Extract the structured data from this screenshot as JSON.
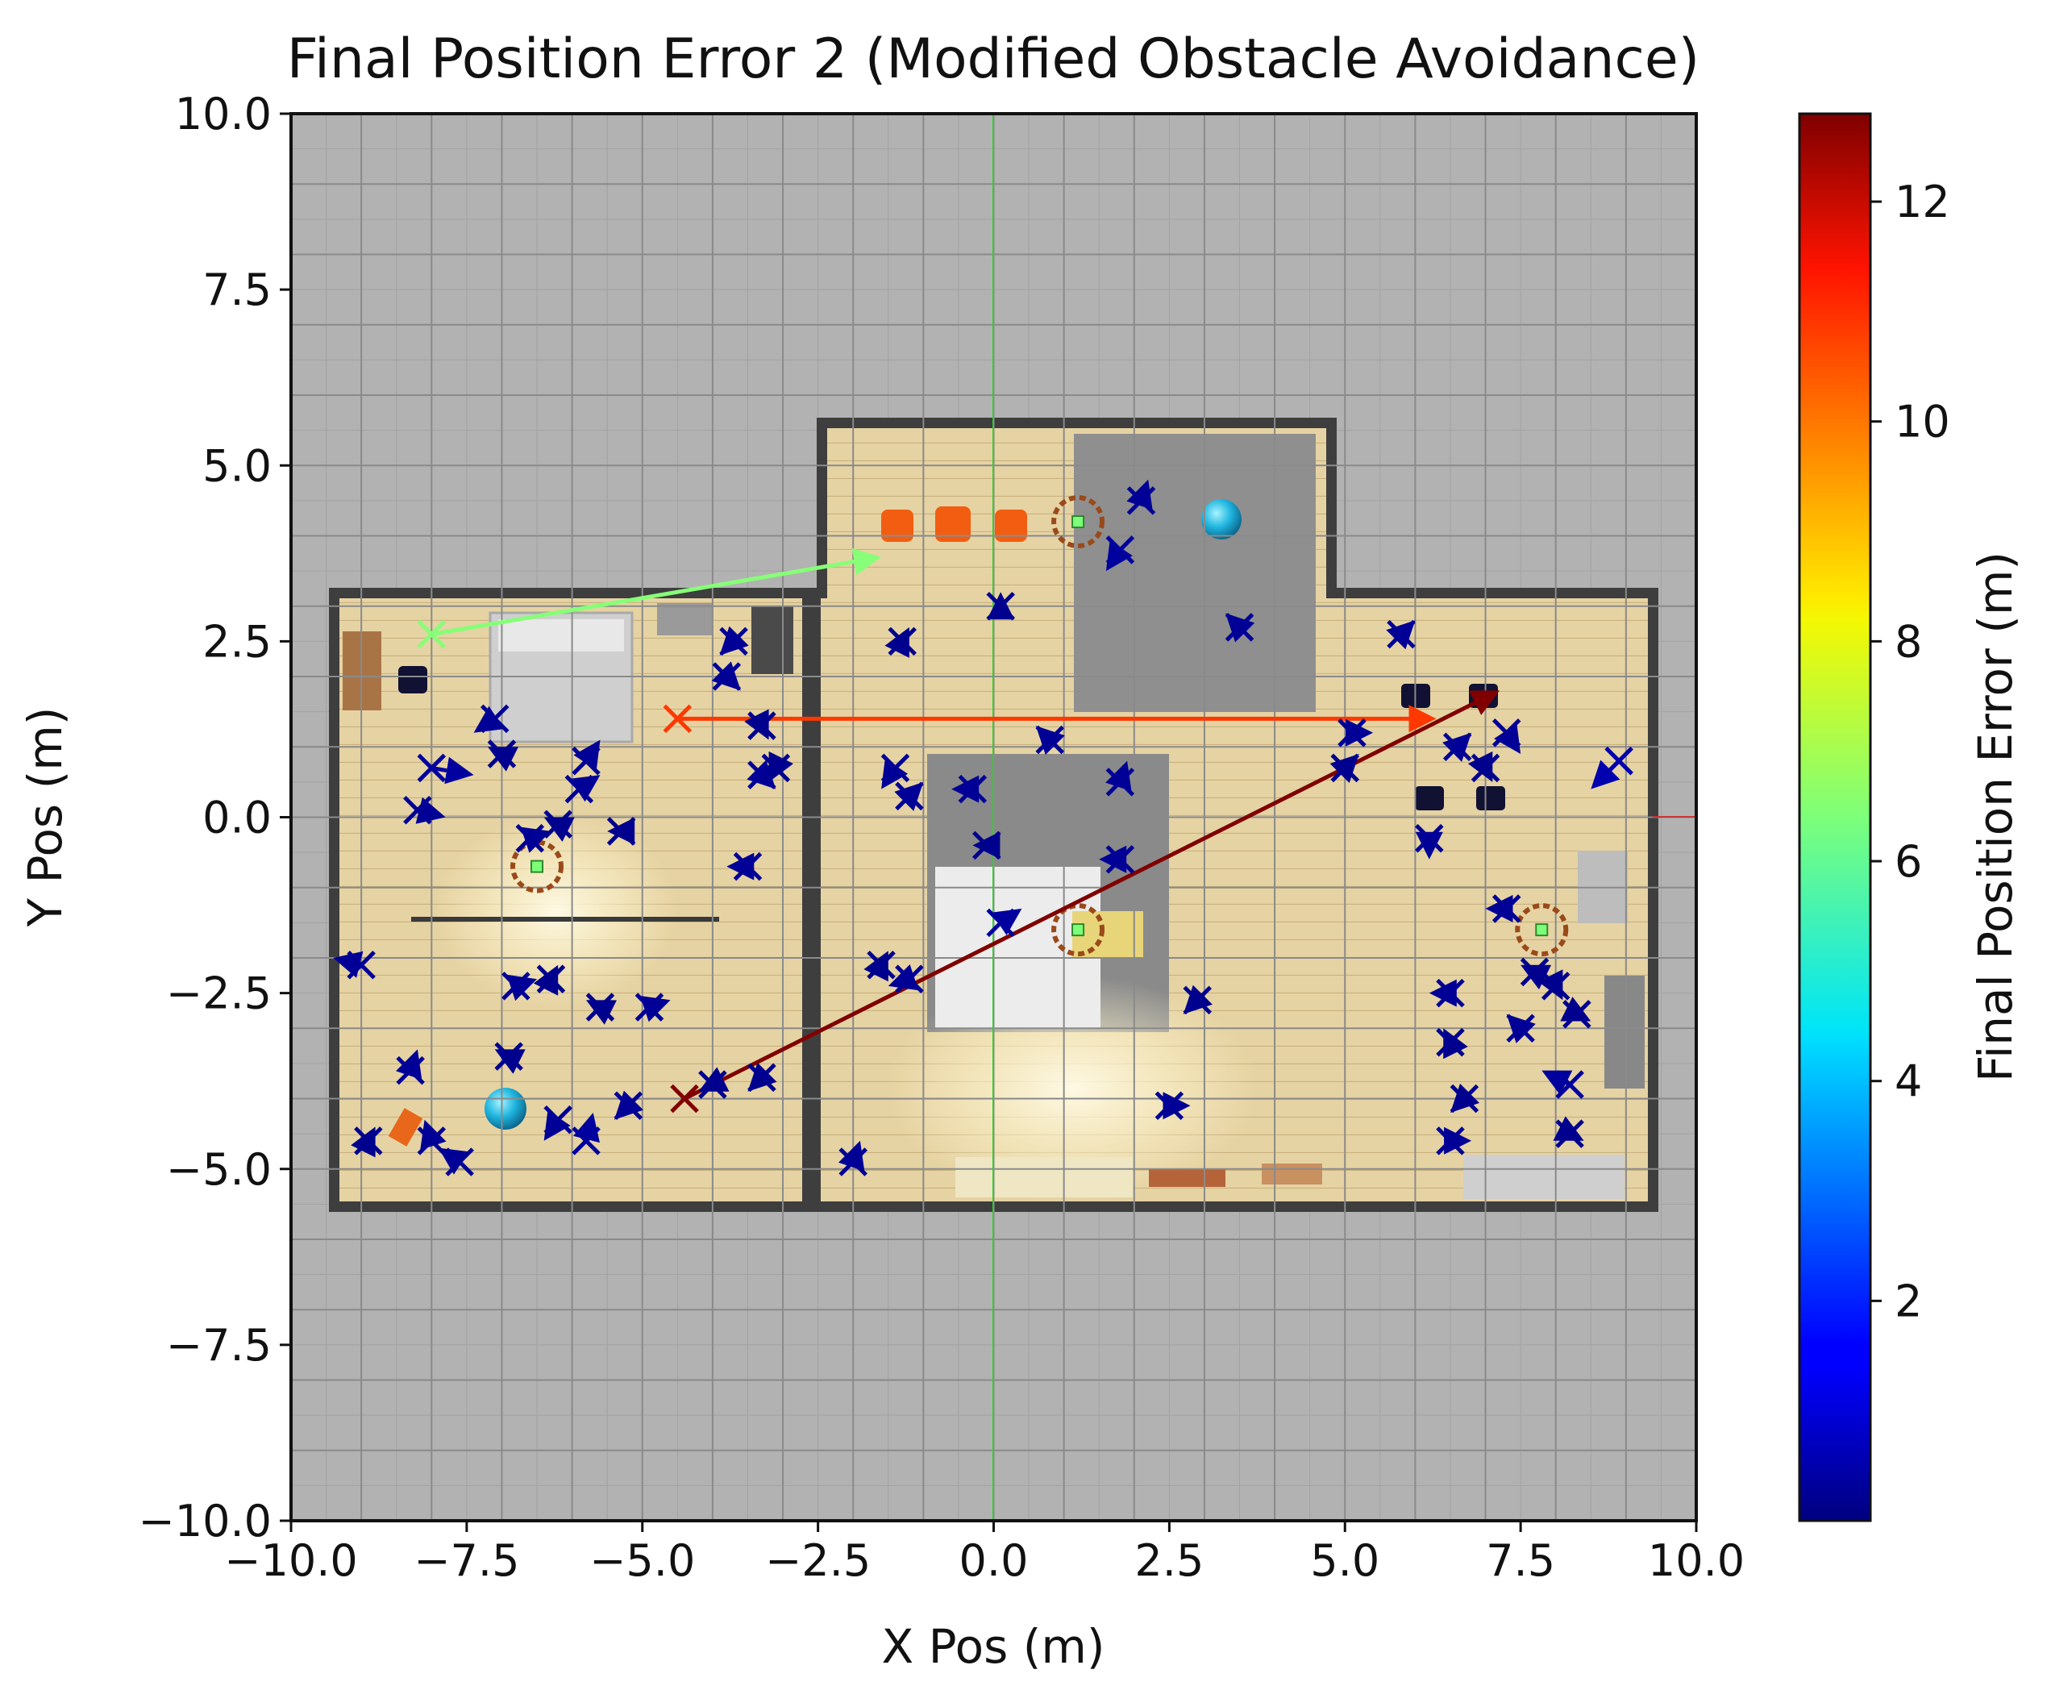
{
  "chart_data": {
    "type": "scatter",
    "title": "Final Position Error 2 (Modified Obstacle Avoidance)",
    "xlabel": "X Pos (m)",
    "ylabel": "Y Pos (m)",
    "xlim": [
      -10.0,
      10.0
    ],
    "ylim": [
      -10.0,
      10.0
    ],
    "xticks": [
      "−10.0",
      "−7.5",
      "−5.0",
      "−2.5",
      "0.0",
      "2.5",
      "5.0",
      "7.5",
      "10.0"
    ],
    "yticks": [
      "−10.0",
      "−7.5",
      "−5.0",
      "−2.5",
      "0.0",
      "2.5",
      "5.0",
      "7.5",
      "10.0"
    ],
    "grid": true,
    "colorbar": {
      "label": "Final Position Error (m)",
      "range": [
        0.0,
        12.8
      ],
      "ticks": [
        "2",
        "4",
        "6",
        "8",
        "10",
        "12"
      ],
      "colormap": "jet"
    },
    "background": "top-down floor map of an apartment",
    "trajectories": [
      {
        "start": [
          -8.0,
          2.6
        ],
        "end": [
          -1.6,
          3.7
        ],
        "error": 6.5
      },
      {
        "start": [
          -4.5,
          1.4
        ],
        "end": [
          6.3,
          1.4
        ],
        "error": 10.5
      },
      {
        "start": [
          -4.4,
          -4.0
        ],
        "end": [
          7.2,
          1.8
        ],
        "error": 12.8
      },
      {
        "start": [
          -9.0,
          -2.1
        ],
        "end": [
          -9.4,
          -2.0
        ],
        "error": 0.3
      },
      {
        "start": [
          -8.2,
          0.1
        ],
        "end": [
          -7.8,
          0.0
        ],
        "error": 0.3
      },
      {
        "start": [
          -8.0,
          0.7
        ],
        "end": [
          -7.4,
          0.6
        ],
        "error": 0.4
      },
      {
        "start": [
          -7.1,
          1.4
        ],
        "end": [
          -7.4,
          1.2
        ],
        "error": 0.3
      },
      {
        "start": [
          -7.0,
          0.9
        ],
        "end": [
          -7.2,
          1.0
        ],
        "error": 0.2
      },
      {
        "start": [
          -6.6,
          -0.3
        ],
        "end": [
          -6.3,
          -0.2
        ],
        "error": 0.3
      },
      {
        "start": [
          -6.2,
          -0.1
        ],
        "end": [
          -6.4,
          0.0
        ],
        "error": 0.2
      },
      {
        "start": [
          -5.9,
          0.4
        ],
        "end": [
          -5.6,
          0.6
        ],
        "error": 0.3
      },
      {
        "start": [
          -5.8,
          0.8
        ],
        "end": [
          -5.6,
          1.1
        ],
        "error": 0.3
      },
      {
        "start": [
          -5.3,
          -0.2
        ],
        "end": [
          -5.5,
          -0.2
        ],
        "error": 0.2
      },
      {
        "start": [
          -3.7,
          2.5
        ],
        "end": [
          -3.9,
          2.3
        ],
        "error": 0.3
      },
      {
        "start": [
          -3.8,
          2.0
        ],
        "end": [
          -3.6,
          1.8
        ],
        "error": 0.3
      },
      {
        "start": [
          -3.3,
          1.3
        ],
        "end": [
          -3.2,
          1.1
        ],
        "error": 0.2
      },
      {
        "start": [
          -3.3,
          0.6
        ],
        "end": [
          -3.1,
          0.4
        ],
        "error": 0.3
      },
      {
        "start": [
          -3.1,
          0.7
        ],
        "end": [
          -3.2,
          0.5
        ],
        "error": 0.2
      },
      {
        "start": [
          -3.5,
          -0.7
        ],
        "end": [
          -3.8,
          -0.7
        ],
        "error": 0.3
      },
      {
        "start": [
          -6.8,
          -2.4
        ],
        "end": [
          -6.5,
          -2.3
        ],
        "error": 0.3
      },
      {
        "start": [
          -6.3,
          -2.3
        ],
        "end": [
          -6.2,
          -2.1
        ],
        "error": 0.2
      },
      {
        "start": [
          -5.6,
          -2.7
        ],
        "end": [
          -5.8,
          -2.6
        ],
        "error": 0.2
      },
      {
        "start": [
          -4.9,
          -2.7
        ],
        "end": [
          -4.6,
          -2.6
        ],
        "error": 0.3
      },
      {
        "start": [
          -6.9,
          -3.4
        ],
        "end": [
          -7.1,
          -3.3
        ],
        "error": 0.2
      },
      {
        "start": [
          -8.3,
          -3.6
        ],
        "end": [
          -8.2,
          -3.3
        ],
        "error": 0.3
      },
      {
        "start": [
          -8.9,
          -4.6
        ],
        "end": [
          -8.8,
          -4.4
        ],
        "error": 0.2
      },
      {
        "start": [
          -8.0,
          -4.6
        ],
        "end": [
          -8.1,
          -4.3
        ],
        "error": 0.3
      },
      {
        "start": [
          -7.6,
          -4.9
        ],
        "end": [
          -7.9,
          -4.7
        ],
        "error": 0.3
      },
      {
        "start": [
          -6.2,
          -4.3
        ],
        "end": [
          -6.4,
          -4.6
        ],
        "error": 0.3
      },
      {
        "start": [
          -5.8,
          -4.6
        ],
        "end": [
          -5.7,
          -4.2
        ],
        "error": 0.4
      },
      {
        "start": [
          -5.2,
          -4.1
        ],
        "end": [
          -5.4,
          -4.3
        ],
        "error": 0.3
      },
      {
        "start": [
          -4.0,
          -3.8
        ],
        "end": [
          -4.2,
          -3.9
        ],
        "error": 0.2
      },
      {
        "start": [
          -3.3,
          -3.7
        ],
        "end": [
          -3.5,
          -3.9
        ],
        "error": 0.2
      },
      {
        "start": [
          -1.3,
          2.5
        ],
        "end": [
          -1.2,
          2.7
        ],
        "error": 0.2
      },
      {
        "start": [
          0.1,
          3.0
        ],
        "end": [
          0.1,
          3.2
        ],
        "error": 0.2
      },
      {
        "start": [
          -1.4,
          0.7
        ],
        "end": [
          -1.6,
          0.4
        ],
        "error": 0.3
      },
      {
        "start": [
          -1.2,
          0.3
        ],
        "end": [
          -1.0,
          0.5
        ],
        "error": 0.3
      },
      {
        "start": [
          -0.3,
          0.4
        ],
        "end": [
          -0.6,
          0.4
        ],
        "error": 0.3
      },
      {
        "start": [
          -0.1,
          -0.4
        ],
        "end": [
          -0.3,
          -0.4
        ],
        "error": 0.2
      },
      {
        "start": [
          0.8,
          1.1
        ],
        "end": [
          0.6,
          1.3
        ],
        "error": 0.3
      },
      {
        "start": [
          1.8,
          0.5
        ],
        "end": [
          1.9,
          0.8
        ],
        "error": 0.3
      },
      {
        "start": [
          1.8,
          -0.6
        ],
        "end": [
          1.5,
          -0.6
        ],
        "error": 0.3
      },
      {
        "start": [
          0.1,
          -1.5
        ],
        "end": [
          0.4,
          -1.3
        ],
        "error": 0.4
      },
      {
        "start": [
          -1.6,
          -2.1
        ],
        "end": [
          -1.5,
          -1.9
        ],
        "error": 0.2
      },
      {
        "start": [
          -1.2,
          -2.3
        ],
        "end": [
          -1.5,
          -2.4
        ],
        "error": 0.3
      },
      {
        "start": [
          2.1,
          4.5
        ],
        "end": [
          2.2,
          4.8
        ],
        "error": 0.3
      },
      {
        "start": [
          1.8,
          3.8
        ],
        "end": [
          1.6,
          3.5
        ],
        "error": 0.4
      },
      {
        "start": [
          3.5,
          2.7
        ],
        "end": [
          3.3,
          2.9
        ],
        "error": 0.3
      },
      {
        "start": [
          5.8,
          2.6
        ],
        "end": [
          6.0,
          2.8
        ],
        "error": 0.3
      },
      {
        "start": [
          5.1,
          1.2
        ],
        "end": [
          5.4,
          1.2
        ],
        "error": 0.3
      },
      {
        "start": [
          5.0,
          0.7
        ],
        "end": [
          5.2,
          0.9
        ],
        "error": 0.2
      },
      {
        "start": [
          6.6,
          1.0
        ],
        "end": [
          6.8,
          1.2
        ],
        "error": 0.3
      },
      {
        "start": [
          7.0,
          0.7
        ],
        "end": [
          7.1,
          0.5
        ],
        "error": 0.2
      },
      {
        "start": [
          7.3,
          1.2
        ],
        "end": [
          7.5,
          0.9
        ],
        "error": 0.3
      },
      {
        "start": [
          8.9,
          0.8
        ],
        "end": [
          8.5,
          0.4
        ],
        "error": 0.6
      },
      {
        "start": [
          6.2,
          -0.3
        ],
        "end": [
          6.2,
          -0.6
        ],
        "error": 0.3
      },
      {
        "start": [
          7.3,
          -1.3
        ],
        "end": [
          7.0,
          -1.3
        ],
        "error": 0.3
      },
      {
        "start": [
          2.9,
          -2.6
        ],
        "end": [
          2.7,
          -2.8
        ],
        "error": 0.2
      },
      {
        "start": [
          2.5,
          -4.1
        ],
        "end": [
          2.8,
          -4.1
        ],
        "error": 0.3
      },
      {
        "start": [
          -2.0,
          -4.9
        ],
        "end": [
          -1.9,
          -4.6
        ],
        "error": 0.3
      },
      {
        "start": [
          6.5,
          -2.5
        ],
        "end": [
          6.2,
          -2.5
        ],
        "error": 0.3
      },
      {
        "start": [
          6.5,
          -3.2
        ],
        "end": [
          6.4,
          -3.0
        ],
        "error": 0.2
      },
      {
        "start": [
          6.7,
          -4.0
        ],
        "end": [
          6.5,
          -4.2
        ],
        "error": 0.2
      },
      {
        "start": [
          6.5,
          -4.6
        ],
        "end": [
          6.8,
          -4.6
        ],
        "error": 0.3
      },
      {
        "start": [
          7.5,
          -3.0
        ],
        "end": [
          7.3,
          -2.8
        ],
        "error": 0.3
      },
      {
        "start": [
          7.7,
          -2.2
        ],
        "end": [
          7.5,
          -2.1
        ],
        "error": 0.2
      },
      {
        "start": [
          8.0,
          -2.4
        ],
        "end": [
          8.1,
          -2.6
        ],
        "error": 0.2
      },
      {
        "start": [
          8.3,
          -2.8
        ],
        "end": [
          8.5,
          -2.9
        ],
        "error": 0.2
      },
      {
        "start": [
          8.2,
          -3.8
        ],
        "end": [
          7.8,
          -3.6
        ],
        "error": 0.4
      },
      {
        "start": [
          8.2,
          -4.5
        ],
        "end": [
          8.4,
          -4.6
        ],
        "error": 0.2
      }
    ],
    "markers": [
      {
        "kind": "target-ring",
        "pos": [
          -6.5,
          -0.7
        ]
      },
      {
        "kind": "target-ring",
        "pos": [
          1.2,
          4.2
        ]
      },
      {
        "kind": "target-ring",
        "pos": [
          1.2,
          -1.6
        ]
      },
      {
        "kind": "target-ring",
        "pos": [
          7.8,
          -1.6
        ]
      },
      {
        "kind": "sphere",
        "pos": [
          3.2,
          4.2
        ]
      },
      {
        "kind": "sphere",
        "pos": [
          -6.9,
          -4.2
        ]
      }
    ]
  }
}
